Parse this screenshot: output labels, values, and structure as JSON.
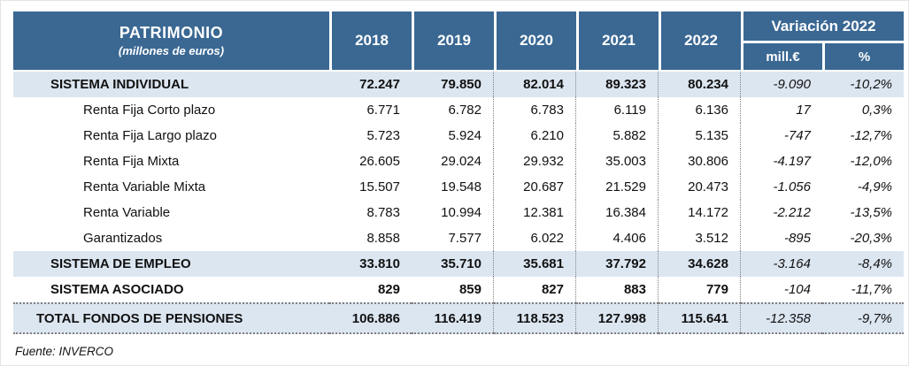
{
  "table": {
    "header": {
      "title": "PATRIMONIO",
      "subtitle": "(millones de euros)",
      "years": [
        "2018",
        "2019",
        "2020",
        "2021",
        "2022"
      ],
      "variation_title": "Variación 2022",
      "variation_cols": [
        "mill.€",
        "%"
      ]
    },
    "rows": [
      {
        "label": "SISTEMA INDIVIDUAL",
        "type": "category",
        "banded": true,
        "values": [
          "72.247",
          "79.850",
          "82.014",
          "89.323",
          "80.234"
        ],
        "var_mill": "-9.090",
        "var_pct": "-10,2%"
      },
      {
        "label": "Renta Fija Corto plazo",
        "type": "sub",
        "banded": false,
        "values": [
          "6.771",
          "6.782",
          "6.783",
          "6.119",
          "6.136"
        ],
        "var_mill": "17",
        "var_pct": "0,3%"
      },
      {
        "label": "Renta Fija Largo plazo",
        "type": "sub",
        "banded": false,
        "values": [
          "5.723",
          "5.924",
          "6.210",
          "5.882",
          "5.135"
        ],
        "var_mill": "-747",
        "var_pct": "-12,7%"
      },
      {
        "label": "Renta Fija Mixta",
        "type": "sub",
        "banded": false,
        "values": [
          "26.605",
          "29.024",
          "29.932",
          "35.003",
          "30.806"
        ],
        "var_mill": "-4.197",
        "var_pct": "-12,0%"
      },
      {
        "label": "Renta Variable Mixta",
        "type": "sub",
        "banded": false,
        "values": [
          "15.507",
          "19.548",
          "20.687",
          "21.529",
          "20.473"
        ],
        "var_mill": "-1.056",
        "var_pct": "-4,9%"
      },
      {
        "label": "Renta Variable",
        "type": "sub",
        "banded": false,
        "values": [
          "8.783",
          "10.994",
          "12.381",
          "16.384",
          "14.172"
        ],
        "var_mill": "-2.212",
        "var_pct": "-13,5%"
      },
      {
        "label": "Garantizados",
        "type": "sub",
        "banded": false,
        "values": [
          "8.858",
          "7.577",
          "6.022",
          "4.406",
          "3.512"
        ],
        "var_mill": "-895",
        "var_pct": "-20,3%"
      },
      {
        "label": "SISTEMA DE EMPLEO",
        "type": "category",
        "banded": true,
        "values": [
          "33.810",
          "35.710",
          "35.681",
          "37.792",
          "34.628"
        ],
        "var_mill": "-3.164",
        "var_pct": "-8,4%"
      },
      {
        "label": "SISTEMA ASOCIADO",
        "type": "category",
        "banded": false,
        "values": [
          "829",
          "859",
          "827",
          "883",
          "779"
        ],
        "var_mill": "-104",
        "var_pct": "-11,7%"
      },
      {
        "label": "TOTAL FONDOS DE PENSIONES",
        "type": "total",
        "banded": true,
        "values": [
          "106.886",
          "116.419",
          "118.523",
          "127.998",
          "115.641"
        ],
        "var_mill": "-12.358",
        "var_pct": "-9,7%"
      }
    ],
    "footer": "Fuente: INVERCO"
  },
  "colors": {
    "header_bg": "#3a6893",
    "band_bg": "#dce6f1",
    "grid_gray": "#7f7f7f"
  }
}
